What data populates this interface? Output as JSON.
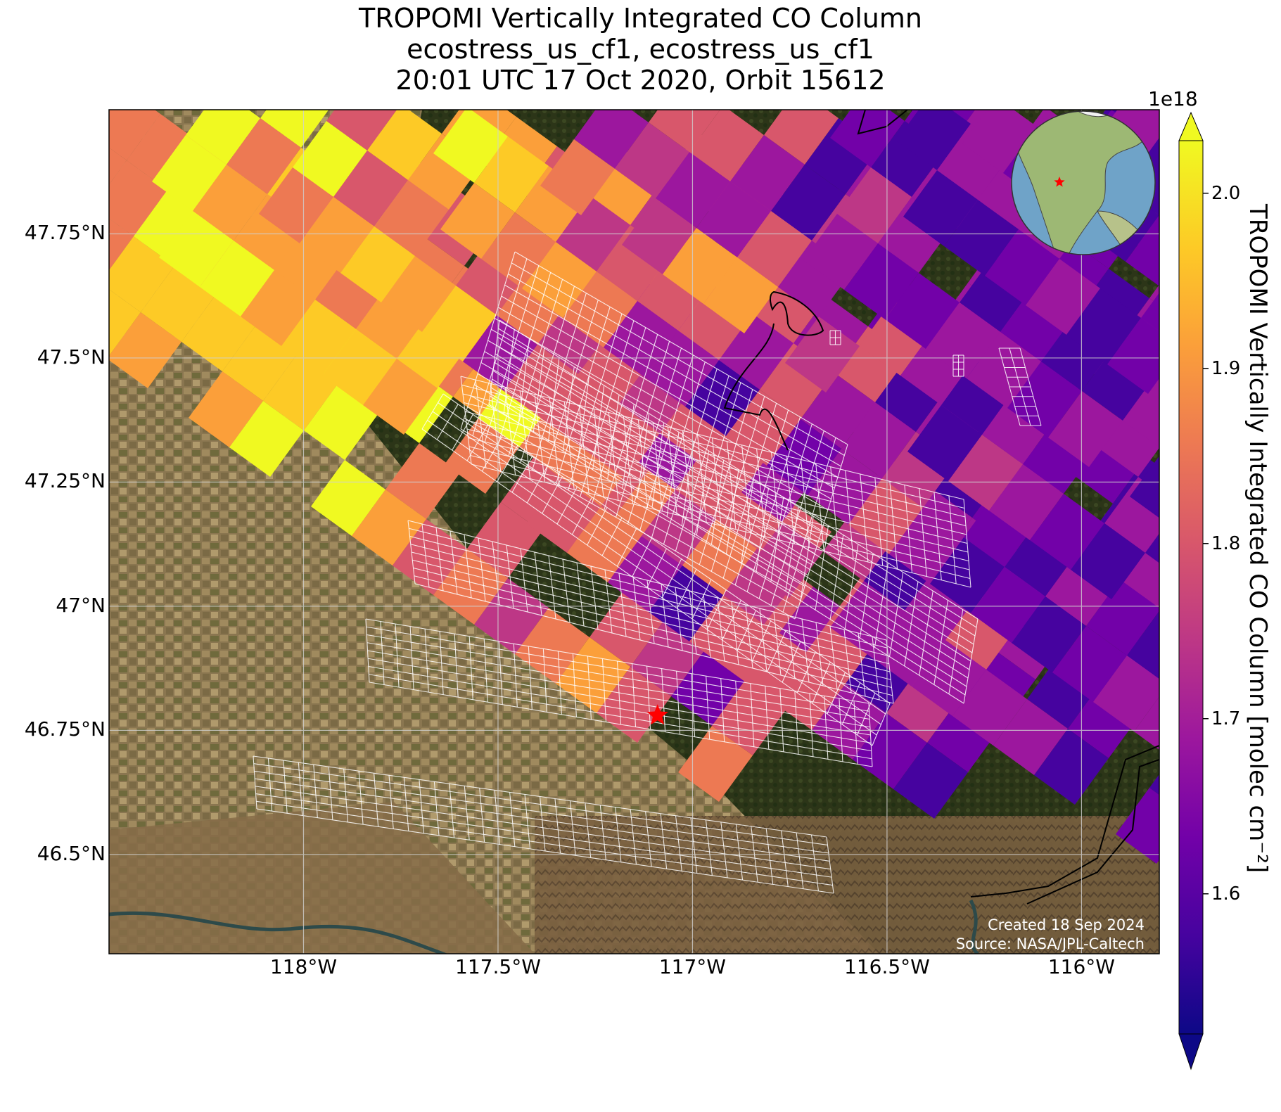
{
  "title": {
    "line1": "TROPOMI Vertically Integrated CO Column",
    "line2": "ecostress_us_cf1, ecostress_us_cf1",
    "line3": "20:01 UTC 17 Oct 2020, Orbit 15612"
  },
  "map": {
    "projection": "plate carrée",
    "lon_range": [
      -118.5,
      -115.8
    ],
    "lat_range": [
      46.3,
      48.0
    ],
    "background": "satellite imagery (cropland to west, forest to northeast)",
    "target_marker": {
      "lon": -117.09,
      "lat": 46.78,
      "shape": "star",
      "color": "#ff0000"
    },
    "gridlines": true,
    "inset_globe": {
      "centered_on": "North America",
      "marker": "red star"
    }
  },
  "axes": {
    "yticks": [
      {
        "lat": 47.75,
        "label": "47.75°N"
      },
      {
        "lat": 47.5,
        "label": "47.5°N"
      },
      {
        "lat": 47.25,
        "label": "47.25°N"
      },
      {
        "lat": 47.0,
        "label": "47°N"
      },
      {
        "lat": 46.75,
        "label": "46.75°N"
      },
      {
        "lat": 46.5,
        "label": "46.5°N"
      }
    ],
    "xticks": [
      {
        "lon": -118.0,
        "label": "118°W"
      },
      {
        "lon": -117.5,
        "label": "117.5°W"
      },
      {
        "lon": -117.0,
        "label": "117°W"
      },
      {
        "lon": -116.5,
        "label": "116.5°W"
      },
      {
        "lon": -116.0,
        "label": "116°W"
      }
    ]
  },
  "colorbar": {
    "label": "TROPOMI Vertically Integrated CO Column [molec cm⁻²]",
    "exponent": "1e18",
    "colormap": "plasma",
    "range": [
      1.52,
      2.03
    ],
    "extend": "both",
    "ticks": [
      {
        "value": 1.6,
        "label": "1.6"
      },
      {
        "value": 1.7,
        "label": "1.7"
      },
      {
        "value": 1.8,
        "label": "1.8"
      },
      {
        "value": 1.9,
        "label": "1.9"
      },
      {
        "value": 2.0,
        "label": "2.0"
      }
    ]
  },
  "footer": {
    "created": "Created 18 Sep 2024",
    "source": "Source: NASA/JPL-Caltech"
  },
  "colors": {
    "plasma": [
      "#0d0887",
      "#46039f",
      "#7201a8",
      "#9c179e",
      "#bd3786",
      "#d8576b",
      "#ed7953",
      "#fb9f3a",
      "#fdca26",
      "#f0f921"
    ]
  }
}
